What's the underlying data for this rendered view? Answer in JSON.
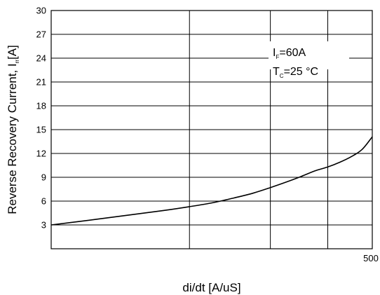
{
  "chart_data": {
    "type": "line",
    "xlabel": "di/dt [A/uS]",
    "ylabel_main": "Reverse Recovery Current, I",
    "ylabel_sub": "rr",
    "ylabel_tail": "[A]",
    "x_axis": {
      "scale": "log",
      "range": [
        100,
        500
      ],
      "tick_labels": [
        {
          "value": 500,
          "label": "500"
        }
      ],
      "gridlines": [
        200,
        300,
        400,
        500
      ]
    },
    "y_axis": {
      "range": [
        0,
        30
      ],
      "ticks": [
        3,
        6,
        9,
        12,
        15,
        18,
        21,
        24,
        27,
        30
      ]
    },
    "grid": true,
    "annotation": {
      "line1_main": "I",
      "line1_sub": "F",
      "line1_tail": "=60A",
      "line2_main": "T",
      "line2_sub": "C",
      "line2_tail": "=25 °C"
    },
    "series": [
      {
        "x": [
          100,
          125,
          150,
          175,
          200,
          225,
          250,
          275,
          300,
          325,
          350,
          375,
          400,
          425,
          450,
          475,
          500
        ],
        "y": [
          3.0,
          3.7,
          4.3,
          4.8,
          5.3,
          5.8,
          6.4,
          7.0,
          7.7,
          8.4,
          9.1,
          9.8,
          10.3,
          10.9,
          11.6,
          12.5,
          14.1
        ]
      }
    ]
  }
}
